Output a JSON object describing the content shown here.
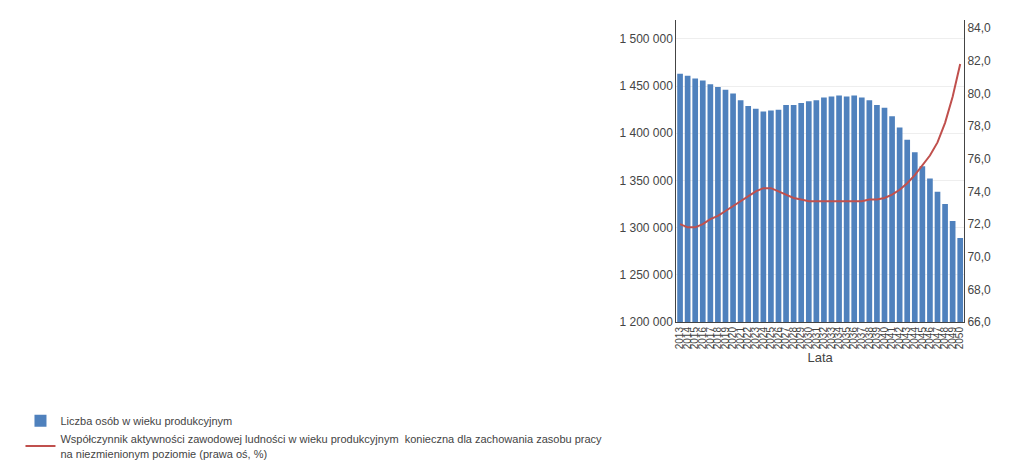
{
  "chart_data": {
    "type": "bar",
    "xlabel": "Lata",
    "categories": [
      2013,
      2014,
      2015,
      2016,
      2017,
      2018,
      2019,
      2020,
      2021,
      2022,
      2023,
      2024,
      2025,
      2026,
      2027,
      2028,
      2029,
      2030,
      2031,
      2032,
      2033,
      2034,
      2035,
      2036,
      2037,
      2038,
      2039,
      2040,
      2041,
      2042,
      2043,
      2044,
      2045,
      2046,
      2047,
      2048,
      2049,
      2050
    ],
    "series": [
      {
        "name": "Liczba osób w wieku produkcyjnym",
        "type": "bar",
        "color": "#4F81BD",
        "values": [
          1463000,
          1461000,
          1458000,
          1456000,
          1452000,
          1449000,
          1446000,
          1442000,
          1435000,
          1429000,
          1426000,
          1423000,
          1424000,
          1425000,
          1430000,
          1430000,
          1432000,
          1434000,
          1435000,
          1438000,
          1439000,
          1440000,
          1439000,
          1440000,
          1438000,
          1435000,
          1430000,
          1427000,
          1418000,
          1406000,
          1393000,
          1380000,
          1365000,
          1352000,
          1338000,
          1325000,
          1307000,
          1289000
        ]
      },
      {
        "name": "Współczynnik aktywności zawodowej ludności w wieku produkcyjnym  konieczna dla zachowania zasobu pracy\nna niezmienionym poziomie (prawa oś, %)",
        "type": "line",
        "axis": "y2",
        "color": "#C0504D",
        "values": [
          72.0,
          71.8,
          71.8,
          72.0,
          72.3,
          72.5,
          72.8,
          73.1,
          73.4,
          73.7,
          74.0,
          74.2,
          74.2,
          74.0,
          73.8,
          73.6,
          73.5,
          73.4,
          73.4,
          73.4,
          73.4,
          73.4,
          73.4,
          73.4,
          73.4,
          73.5,
          73.5,
          73.6,
          73.8,
          74.1,
          74.5,
          75.0,
          75.6,
          76.2,
          77.0,
          78.2,
          79.8,
          81.8
        ]
      }
    ],
    "ylim": [
      1200000,
      1520000
    ],
    "yticks": [
      {
        "value": 1200000,
        "label": "1 200 000"
      },
      {
        "value": 1250000,
        "label": "1 250 000"
      },
      {
        "value": 1300000,
        "label": "1 300 000"
      },
      {
        "value": 1350000,
        "label": "1 350 000"
      },
      {
        "value": 1400000,
        "label": "1 400 000"
      },
      {
        "value": 1450000,
        "label": "1 450 000"
      },
      {
        "value": 1500000,
        "label": "1 500 000"
      }
    ],
    "y2lim": [
      66.0,
      84.5
    ],
    "y2ticks": [
      {
        "value": 66.0,
        "label": "66,0"
      },
      {
        "value": 68.0,
        "label": "68,0"
      },
      {
        "value": 70.0,
        "label": "70,0"
      },
      {
        "value": 72.0,
        "label": "72,0"
      },
      {
        "value": 74.0,
        "label": "74,0"
      },
      {
        "value": 76.0,
        "label": "76,0"
      },
      {
        "value": 78.0,
        "label": "78,0"
      },
      {
        "value": 80.0,
        "label": "80,0"
      },
      {
        "value": 82.0,
        "label": "82,0"
      },
      {
        "value": 84.0,
        "label": "84,0"
      }
    ],
    "grid": true,
    "legend": "bottom left"
  }
}
